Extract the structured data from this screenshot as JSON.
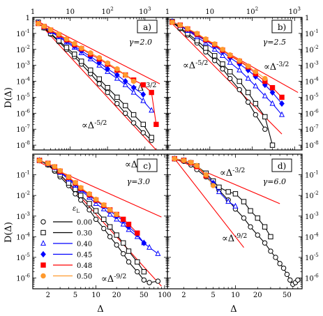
{
  "figure": {
    "ylabel_left": "D(Δ)",
    "xlabel_bottom": "Δ"
  },
  "legend": {
    "header": "ε",
    "header_sub": "L",
    "entries": [
      {
        "label": "0.00",
        "color": "#000000",
        "marker": "circle"
      },
      {
        "label": "0.30",
        "color": "#000000",
        "marker": "square"
      },
      {
        "label": "0.40",
        "color": "#0000ff",
        "marker": "triangle"
      },
      {
        "label": "0.45",
        "color": "#0000ff",
        "marker": "diamond"
      },
      {
        "label": "0.48",
        "color": "#ff0000",
        "marker": "filled-square"
      },
      {
        "label": "0.50",
        "color": "#ff9a2e",
        "marker": "filled-circle"
      }
    ]
  },
  "chart_data": [
    {
      "type": "line",
      "panel": "a)",
      "gamma_label": "γ=2.0",
      "xscale": "log",
      "yscale": "log",
      "xlim": [
        1,
        4000
      ],
      "ylim": [
        5e-09,
        1
      ],
      "x_ticks_top": [
        1,
        10,
        100,
        1000
      ],
      "y_ticks": [
        1,
        0.1,
        0.01,
        0.001,
        0.0001,
        1e-05,
        1e-06,
        1e-07,
        1e-08
      ],
      "y_tick_labels": [
        "1",
        "10-1",
        "10-2",
        "10-3",
        "10-4",
        "10-5",
        "10-6",
        "10-7",
        "10-8"
      ],
      "guide_lines": [
        {
          "label": "∝Δ",
          "exponent_label": "-3/2",
          "x": [
            1.3,
            2500
          ],
          "y": [
            0.6,
            7e-05
          ]
        },
        {
          "label": "∝Δ",
          "exponent_label": "-5/2",
          "x": [
            1.3,
            2000
          ],
          "y": [
            0.6,
            5e-09
          ]
        }
      ],
      "series": [
        {
          "name": "0.00",
          "x": [
            1.4,
            2,
            3,
            5,
            8,
            13,
            20,
            35,
            60,
            100,
            180,
            300,
            500,
            900,
            1500
          ],
          "y": [
            0.5,
            0.22,
            0.09,
            0.03,
            0.01,
            0.0035,
            0.0012,
            0.0003,
            7e-05,
            2e-05,
            4e-06,
            1e-06,
            2.5e-07,
            6e-08,
            2e-08
          ]
        },
        {
          "name": "0.30",
          "x": [
            1.4,
            2,
            3,
            5,
            8,
            13,
            20,
            35,
            60,
            100,
            180,
            300,
            500,
            900,
            1500
          ],
          "y": [
            0.5,
            0.23,
            0.1,
            0.035,
            0.013,
            0.005,
            0.0018,
            0.0005,
            0.00014,
            4e-05,
            1e-05,
            3e-06,
            8e-07,
            2e-07,
            3e-08
          ]
        },
        {
          "name": "0.40",
          "x": [
            1.4,
            2,
            3,
            5,
            8,
            13,
            20,
            35,
            60,
            100,
            180,
            300,
            500,
            900,
            1500
          ],
          "y": [
            0.45,
            0.25,
            0.13,
            0.06,
            0.028,
            0.013,
            0.006,
            0.0025,
            0.001,
            0.0004,
            0.00015,
            6e-05,
            2e-05,
            6e-06,
            1.5e-06
          ]
        },
        {
          "name": "0.45",
          "x": [
            1.4,
            2,
            3,
            5,
            8,
            13,
            20,
            35,
            60,
            100,
            180,
            300,
            500,
            900
          ],
          "y": [
            0.45,
            0.26,
            0.14,
            0.07,
            0.033,
            0.016,
            0.008,
            0.0035,
            0.0015,
            0.0006,
            0.00025,
            0.0001,
            4e-05,
            1.5e-05
          ]
        },
        {
          "name": "0.48",
          "x": [
            1.4,
            2,
            3,
            5,
            8,
            13,
            20,
            35,
            60,
            100,
            180,
            300,
            500,
            900,
            1500,
            2000
          ],
          "y": [
            0.42,
            0.27,
            0.16,
            0.08,
            0.04,
            0.02,
            0.011,
            0.005,
            0.0025,
            0.0012,
            0.0005,
            0.00025,
            0.00012,
            6e-05,
            2e-05,
            2e-07
          ]
        },
        {
          "name": "0.50",
          "x": [
            1.4,
            2,
            3,
            5,
            8,
            13,
            20,
            35,
            60,
            100,
            180,
            300,
            500
          ],
          "y": [
            0.42,
            0.28,
            0.17,
            0.09,
            0.045,
            0.023,
            0.012,
            0.006,
            0.003,
            0.0014,
            0.0006,
            0.00025,
            0.0001
          ]
        }
      ]
    },
    {
      "type": "line",
      "panel": "b)",
      "gamma_label": "γ=2.5",
      "xscale": "log",
      "yscale": "log",
      "xlim": [
        1,
        1500
      ],
      "ylim": [
        5e-09,
        1
      ],
      "x_ticks_top": [
        1,
        10,
        100,
        1000
      ],
      "guide_lines": [
        {
          "label": "∝Δ",
          "exponent_label": "-3/2",
          "x": [
            1.2,
            1200
          ],
          "y": [
            0.6,
            2e-05
          ]
        },
        {
          "label": "∝Δ",
          "exponent_label": "-5/2",
          "x": [
            1.2,
            500
          ],
          "y": [
            0.5,
            5e-08
          ]
        }
      ],
      "series": [
        {
          "name": "0.00",
          "x": [
            1.3,
            2,
            3,
            5,
            8,
            13,
            20,
            30,
            50,
            80,
            120,
            200
          ],
          "y": [
            0.5,
            0.2,
            0.08,
            0.025,
            0.007,
            0.002,
            0.0006,
            0.00015,
            3e-05,
            5e-06,
            8e-07,
            1e-07
          ]
        },
        {
          "name": "0.30",
          "x": [
            1.3,
            2,
            3,
            5,
            8,
            13,
            20,
            30,
            50,
            80,
            120,
            200,
            300
          ],
          "y": [
            0.55,
            0.23,
            0.1,
            0.035,
            0.012,
            0.004,
            0.0012,
            0.0004,
            0.0001,
            2e-05,
            4e-06,
            6e-07,
            1e-08
          ]
        },
        {
          "name": "0.40",
          "x": [
            1.3,
            2,
            3,
            5,
            8,
            13,
            20,
            30,
            50,
            80,
            120,
            200,
            300,
            500
          ],
          "y": [
            0.55,
            0.3,
            0.15,
            0.06,
            0.025,
            0.01,
            0.004,
            0.0015,
            0.0005,
            0.00015,
            5e-05,
            1.2e-05,
            4e-06,
            8e-07
          ]
        },
        {
          "name": "0.45",
          "x": [
            1.3,
            2,
            3,
            5,
            8,
            13,
            20,
            30,
            50,
            80,
            120,
            200,
            300,
            500
          ],
          "y": [
            0.55,
            0.32,
            0.17,
            0.08,
            0.035,
            0.016,
            0.007,
            0.003,
            0.0012,
            0.0005,
            0.0002,
            6e-05,
            2e-05,
            4e-06
          ]
        },
        {
          "name": "0.48",
          "x": [
            1.3,
            2,
            3,
            5,
            8,
            13,
            20,
            30,
            50,
            80,
            120,
            200,
            300,
            500
          ],
          "y": [
            0.5,
            0.33,
            0.19,
            0.09,
            0.04,
            0.02,
            0.009,
            0.004,
            0.0018,
            0.0008,
            0.0003,
            0.0001,
            4e-05,
            1e-05
          ]
        },
        {
          "name": "0.50",
          "x": [
            1.3,
            2,
            3,
            5,
            8,
            13,
            20,
            30,
            50,
            80,
            120,
            200
          ],
          "y": [
            0.5,
            0.33,
            0.2,
            0.1,
            0.045,
            0.022,
            0.01,
            0.0045,
            0.002,
            0.0009,
            0.0004,
            0.00015
          ]
        }
      ]
    },
    {
      "type": "line",
      "panel": "c)",
      "gamma_label": "γ=3.0",
      "xscale": "log",
      "yscale": "log",
      "xlim": [
        1.2,
        110
      ],
      "ylim": [
        3e-07,
        1
      ],
      "x_ticks": [
        2,
        5,
        10,
        20,
        50,
        100
      ],
      "y_ticks": [
        0.1,
        0.01,
        0.001,
        0.0001,
        1e-05,
        1e-06
      ],
      "y_tick_labels": [
        "10-1",
        "10-2",
        "10-3",
        "10-4",
        "10-5",
        "10-6"
      ],
      "guide_lines": [
        {
          "label": "∝Δ",
          "exponent_label": "-3/2",
          "x": [
            1.5,
            90
          ],
          "y": [
            0.4,
            0.0009
          ]
        },
        {
          "label": "∝Δ",
          "exponent_label": "-9/2",
          "x": [
            2.5,
            90
          ],
          "y": [
            0.2,
            4e-07
          ]
        }
      ],
      "series": [
        {
          "name": "0.00",
          "x": [
            1.5,
            2,
            2.5,
            3,
            4,
            5,
            6,
            8,
            10,
            13,
            16,
            20,
            25,
            30,
            40,
            50,
            60,
            80
          ],
          "y": [
            0.5,
            0.3,
            0.15,
            0.08,
            0.03,
            0.012,
            0.006,
            0.002,
            0.0007,
            0.00025,
            0.0001,
            4e-05,
            1.5e-05,
            6e-06,
            2e-06,
            8e-07,
            6e-07,
            7e-07
          ]
        },
        {
          "name": "0.30",
          "x": [
            1.5,
            2,
            2.5,
            3,
            4,
            5,
            6,
            8,
            10,
            13,
            16,
            20,
            25,
            30,
            40,
            50
          ],
          "y": [
            0.5,
            0.32,
            0.18,
            0.1,
            0.04,
            0.02,
            0.01,
            0.004,
            0.0018,
            0.0007,
            0.0003,
            0.00012,
            5e-05,
            2e-05,
            6e-06,
            2e-06
          ]
        },
        {
          "name": "0.40",
          "x": [
            1.5,
            2,
            2.5,
            3,
            4,
            5,
            6,
            8,
            10,
            13,
            16,
            20,
            25,
            30,
            40,
            50,
            60,
            80
          ],
          "y": [
            0.5,
            0.35,
            0.22,
            0.13,
            0.06,
            0.03,
            0.018,
            0.008,
            0.004,
            0.0022,
            0.0012,
            0.0007,
            0.0004,
            0.00022,
            0.0001,
            5e-05,
            3e-05,
            1.5e-05
          ]
        },
        {
          "name": "0.45",
          "x": [
            1.5,
            2,
            2.5,
            3,
            4,
            5,
            6,
            8,
            10,
            13,
            16,
            20,
            25,
            30,
            40,
            50
          ],
          "y": [
            0.5,
            0.35,
            0.23,
            0.14,
            0.07,
            0.035,
            0.02,
            0.01,
            0.0055,
            0.003,
            0.0018,
            0.001,
            0.0006,
            0.0003,
            0.00013,
            5e-05
          ]
        },
        {
          "name": "0.48",
          "x": [
            1.5,
            2,
            2.5,
            3,
            4,
            5,
            6,
            8,
            10,
            13,
            16,
            20,
            25,
            30,
            40
          ],
          "y": [
            0.5,
            0.36,
            0.24,
            0.15,
            0.075,
            0.04,
            0.022,
            0.011,
            0.006,
            0.0033,
            0.002,
            0.0012,
            0.0007,
            0.0004,
            0.00015
          ]
        },
        {
          "name": "0.50",
          "x": [
            1.5,
            2,
            2.5,
            3,
            4,
            5,
            6,
            8,
            10,
            13,
            16,
            20
          ],
          "y": [
            0.5,
            0.36,
            0.25,
            0.16,
            0.08,
            0.042,
            0.024,
            0.012,
            0.0065,
            0.0035,
            0.002,
            0.0012
          ]
        }
      ]
    },
    {
      "type": "line",
      "panel": "d)",
      "gamma_label": "γ=6.0",
      "xscale": "log",
      "yscale": "log",
      "xlim": [
        1.2,
        80
      ],
      "ylim": [
        3e-07,
        1
      ],
      "x_ticks": [
        2,
        5,
        10,
        20,
        50
      ],
      "guide_lines": [
        {
          "label": "∝Δ",
          "exponent_label": "-3/2",
          "x": [
            1.5,
            40
          ],
          "y": [
            0.6,
            0.004
          ]
        },
        {
          "label": "∝Δ",
          "exponent_label": "-9/2",
          "x": [
            1.5,
            13
          ],
          "y": [
            0.6,
            3e-05
          ]
        }
      ],
      "series": [
        {
          "name": "0.00",
          "x": [
            1.5,
            2,
            2.5,
            3,
            4,
            5,
            6,
            8,
            10,
            13,
            16,
            20,
            25,
            30,
            35,
            40,
            45,
            50,
            55,
            60,
            65,
            70
          ],
          "y": [
            0.6,
            0.45,
            0.3,
            0.18,
            0.08,
            0.035,
            0.018,
            0.006,
            0.0022,
            0.0008,
            0.0003,
            0.00012,
            5e-05,
            2e-05,
            1e-05,
            5e-06,
            3e-06,
            1.5e-06,
            8e-07,
            5e-07,
            6e-07,
            8e-07
          ]
        },
        {
          "name": "0.30",
          "x": [
            1.5,
            2,
            2.5,
            3,
            4,
            5,
            6,
            8,
            10,
            13,
            16,
            20,
            25,
            30
          ],
          "y": [
            0.6,
            0.5,
            0.38,
            0.27,
            0.12,
            0.05,
            0.025,
            0.015,
            0.012,
            0.005,
            0.0018,
            0.0008,
            0.0003,
            0.0001
          ]
        },
        {
          "name": "0.40",
          "x": [
            1.5,
            2,
            2.5,
            3,
            4,
            5,
            6,
            8,
            10
          ],
          "y": [
            0.6,
            0.5,
            0.38,
            0.25,
            0.09,
            0.035,
            0.015,
            0.005,
            0.003
          ]
        },
        {
          "name": "0.45",
          "x": [
            1.5,
            2,
            2.5,
            3,
            4,
            5
          ],
          "y": [
            0.6,
            0.5,
            0.38,
            0.26,
            0.1,
            0.04
          ]
        },
        {
          "name": "0.48",
          "x": [
            1.5,
            2,
            2.5,
            3,
            4
          ],
          "y": [
            0.6,
            0.5,
            0.38,
            0.25,
            0.09
          ]
        },
        {
          "name": "0.50",
          "x": [
            1.5,
            2,
            2.5,
            3,
            4,
            5
          ],
          "y": [
            0.6,
            0.5,
            0.4,
            0.28,
            0.1,
            0.03
          ]
        }
      ]
    }
  ]
}
